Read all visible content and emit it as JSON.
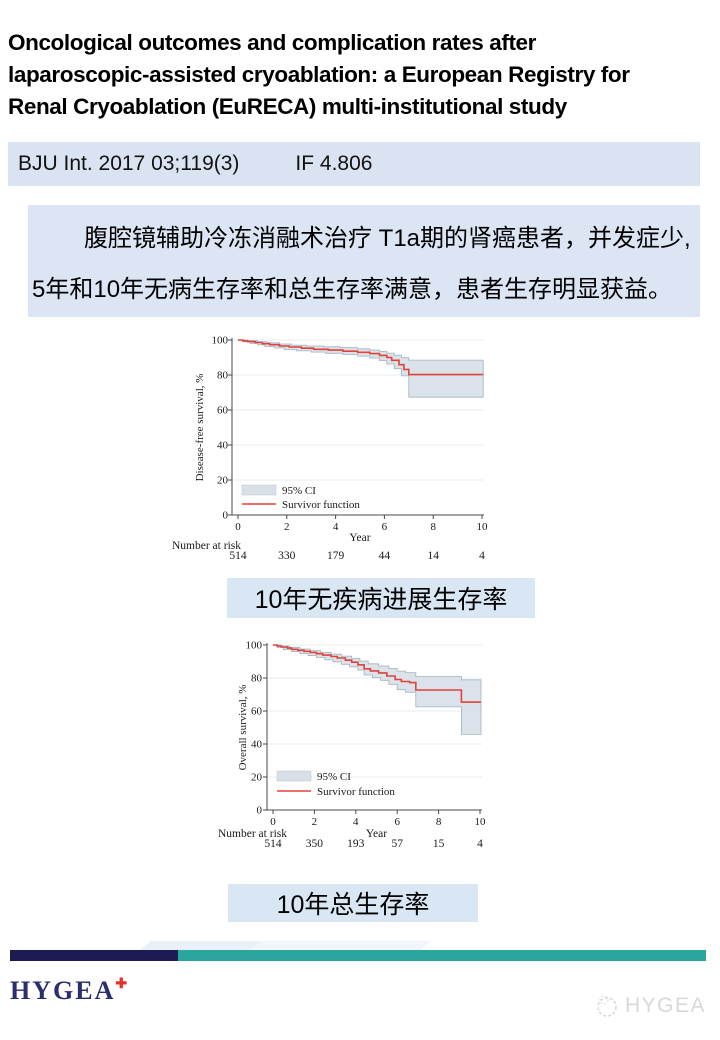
{
  "page": {
    "title_lines": [
      "Oncological outcomes and complication rates after",
      "laparoscopic-assisted cryoablation: a European Registry for",
      "Renal Cryoablation (EuRECA) multi-institutional study"
    ],
    "citation": "BJU Int. 2017 03;119(3)",
    "impact_factor": "IF 4.806",
    "summary_lines": [
      "腹腔镜辅助冷冻消融术治疗 T1a期的肾癌患者，并发症少,",
      "5年和10年无病生存率和总生存率满意，患者生存明显获益。"
    ],
    "footer": {
      "logo_text": "HYGEA",
      "logo_cross": "✚",
      "watermark_text": "HYGEA"
    }
  },
  "chart_data": [
    {
      "type": "line",
      "name": "disease-free-survival-km",
      "ylabel": "Disease-free survival, %",
      "xlabel": "Year",
      "xticks": [
        0,
        2,
        4,
        6,
        8,
        10
      ],
      "yticks": [
        0,
        20,
        40,
        60,
        80,
        100
      ],
      "xlim": [
        0,
        10.05
      ],
      "ylim": [
        0,
        100
      ],
      "grid": true,
      "legend": [
        "95% CI",
        "Survivor function"
      ],
      "colors": {
        "line": "#e0433a",
        "band": "#d9e0e8",
        "band_edge": "#a2b2c1"
      },
      "survivor_steps": [
        [
          0,
          100
        ],
        [
          0.2,
          99.5
        ],
        [
          0.4,
          99.1
        ],
        [
          0.7,
          98.6
        ],
        [
          1.0,
          97.9
        ],
        [
          1.3,
          97.3
        ],
        [
          1.7,
          96.6
        ],
        [
          2.1,
          96.0
        ],
        [
          2.6,
          95.3
        ],
        [
          3.1,
          94.7
        ],
        [
          3.7,
          94.2
        ],
        [
          4.3,
          93.6
        ],
        [
          4.9,
          93.0
        ],
        [
          5.4,
          92.2
        ],
        [
          5.8,
          91.2
        ],
        [
          6.1,
          90.0
        ],
        [
          6.3,
          88.4
        ],
        [
          6.6,
          85.9
        ],
        [
          6.8,
          83.2
        ],
        [
          7.0,
          80.2
        ],
        [
          10.05,
          80.2
        ]
      ],
      "ci_upper": [
        [
          0,
          100
        ],
        [
          0.4,
          99.6
        ],
        [
          0.8,
          99.0
        ],
        [
          1.2,
          98.4
        ],
        [
          1.7,
          97.7
        ],
        [
          2.2,
          97.1
        ],
        [
          2.8,
          96.6
        ],
        [
          3.5,
          96.1
        ],
        [
          4.2,
          95.6
        ],
        [
          4.9,
          95.0
        ],
        [
          5.4,
          94.3
        ],
        [
          5.8,
          93.5
        ],
        [
          6.1,
          92.5
        ],
        [
          6.4,
          91.3
        ],
        [
          6.7,
          89.9
        ],
        [
          7.0,
          88.5
        ],
        [
          10.05,
          88.5
        ]
      ],
      "ci_lower": [
        [
          0,
          100
        ],
        [
          0.2,
          98.9
        ],
        [
          0.5,
          98.0
        ],
        [
          0.8,
          97.2
        ],
        [
          1.1,
          96.3
        ],
        [
          1.5,
          95.4
        ],
        [
          1.9,
          94.6
        ],
        [
          2.4,
          93.8
        ],
        [
          3.0,
          93.1
        ],
        [
          3.6,
          92.4
        ],
        [
          4.3,
          91.7
        ],
        [
          4.9,
          90.8
        ],
        [
          5.4,
          89.7
        ],
        [
          5.8,
          88.2
        ],
        [
          6.1,
          86.3
        ],
        [
          6.4,
          83.6
        ],
        [
          6.7,
          79.5
        ],
        [
          7.0,
          67.3
        ],
        [
          10.05,
          67.3
        ]
      ],
      "number_at_risk": {
        "label": "Number at risk",
        "values": [
          514,
          330,
          179,
          44,
          14,
          4
        ]
      },
      "caption": "10年无疾病进展生存率"
    },
    {
      "type": "line",
      "name": "overall-survival-km",
      "ylabel": "Overall survival, %",
      "xlabel": "Year",
      "xticks": [
        0,
        2,
        4,
        6,
        8,
        10
      ],
      "yticks": [
        0,
        20,
        40,
        60,
        80,
        100
      ],
      "xlim": [
        0,
        10.05
      ],
      "ylim": [
        0,
        100
      ],
      "grid": true,
      "legend": [
        "95% CI",
        "Survivor function"
      ],
      "colors": {
        "line": "#e0433a",
        "band": "#d9e0e8",
        "band_edge": "#a2b2c1"
      },
      "survivor_steps": [
        [
          0,
          100
        ],
        [
          0.2,
          99.4
        ],
        [
          0.4,
          98.8
        ],
        [
          0.7,
          98.1
        ],
        [
          0.9,
          97.4
        ],
        [
          1.2,
          96.8
        ],
        [
          1.5,
          96.2
        ],
        [
          1.8,
          95.5
        ],
        [
          2.1,
          94.7
        ],
        [
          2.4,
          93.9
        ],
        [
          2.8,
          93.0
        ],
        [
          3.1,
          92.1
        ],
        [
          3.5,
          90.8
        ],
        [
          3.8,
          89.6
        ],
        [
          4.1,
          88.0
        ],
        [
          4.4,
          85.6
        ],
        [
          4.7,
          84.3
        ],
        [
          5.1,
          83.1
        ],
        [
          5.5,
          81.2
        ],
        [
          5.9,
          79.1
        ],
        [
          6.2,
          77.9
        ],
        [
          6.6,
          77.2
        ],
        [
          6.9,
          72.7
        ],
        [
          9.0,
          72.7
        ],
        [
          9.1,
          65.4
        ],
        [
          10.05,
          65.4
        ]
      ],
      "ci_upper": [
        [
          0,
          100
        ],
        [
          0.4,
          99.4
        ],
        [
          0.8,
          98.6
        ],
        [
          1.3,
          97.6
        ],
        [
          1.8,
          96.6
        ],
        [
          2.3,
          95.5
        ],
        [
          2.8,
          94.4
        ],
        [
          3.3,
          93.2
        ],
        [
          3.8,
          91.9
        ],
        [
          4.2,
          90.3
        ],
        [
          4.6,
          88.6
        ],
        [
          5.1,
          87.3
        ],
        [
          5.6,
          85.8
        ],
        [
          6.0,
          84.2
        ],
        [
          6.4,
          83.3
        ],
        [
          6.9,
          80.9
        ],
        [
          9.0,
          80.9
        ],
        [
          9.1,
          78.9
        ],
        [
          10.05,
          78.9
        ]
      ],
      "ci_lower": [
        [
          0,
          100
        ],
        [
          0.2,
          98.4
        ],
        [
          0.5,
          97.2
        ],
        [
          0.9,
          96.0
        ],
        [
          1.3,
          94.8
        ],
        [
          1.7,
          93.6
        ],
        [
          2.1,
          92.4
        ],
        [
          2.5,
          91.0
        ],
        [
          2.9,
          89.8
        ],
        [
          3.3,
          88.3
        ],
        [
          3.7,
          86.8
        ],
        [
          4.1,
          84.8
        ],
        [
          4.4,
          81.8
        ],
        [
          4.8,
          80.2
        ],
        [
          5.2,
          78.6
        ],
        [
          5.6,
          76.2
        ],
        [
          6.0,
          72.9
        ],
        [
          6.4,
          71.4
        ],
        [
          6.9,
          62.5
        ],
        [
          9.0,
          62.5
        ],
        [
          9.1,
          45.8
        ],
        [
          10.05,
          45.8
        ]
      ],
      "number_at_risk": {
        "label": "Number at risk",
        "values": [
          514,
          350,
          193,
          57,
          15,
          4
        ]
      },
      "caption": "10年总生存率"
    }
  ]
}
